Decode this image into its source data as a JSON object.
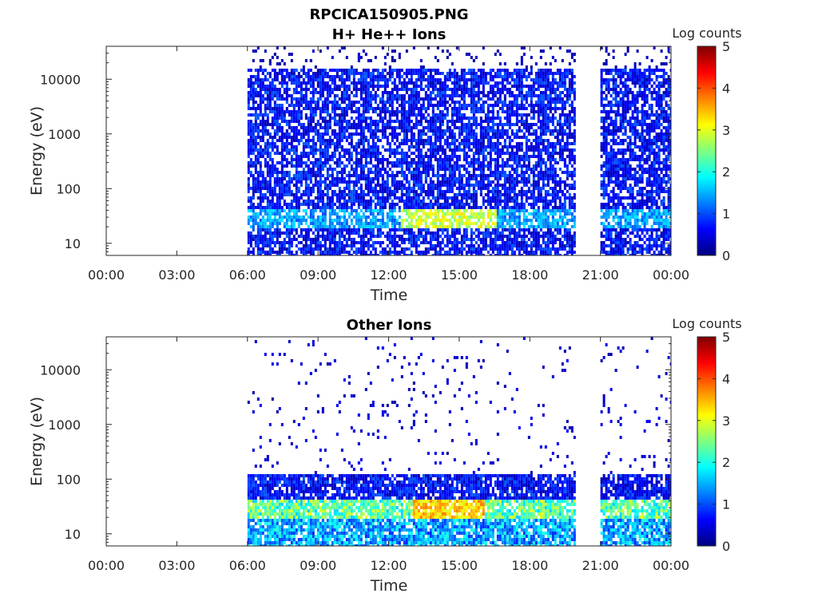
{
  "figure": {
    "title_line1": "RPCICA150905.PNG"
  },
  "colors": {
    "colormap": [
      "#00007f",
      "#0000ff",
      "#007fff",
      "#00ffff",
      "#7fff7f",
      "#ffff00",
      "#ff7f00",
      "#ff0000",
      "#7f0000"
    ],
    "axis": "#262626"
  },
  "chart_data": [
    {
      "type": "heatmap",
      "title": "H+ He++ Ions",
      "xlabel": "Time",
      "ylabel": "Energy (eV)",
      "y_scale": "log",
      "ylim": [
        6,
        40000
      ],
      "xlim": [
        "00:00",
        "24:00"
      ],
      "x_ticks": [
        "00:00",
        "03:00",
        "06:00",
        "09:00",
        "12:00",
        "15:00",
        "18:00",
        "21:00",
        "00:00"
      ],
      "y_ticks": [
        "10",
        "100",
        "1000",
        "10000"
      ],
      "colorbar": {
        "label": "Log counts",
        "range": [
          0,
          5
        ],
        "ticks": [
          "0",
          "1",
          "2",
          "3",
          "4",
          "5"
        ]
      },
      "data_intervals": [
        {
          "start_hour": 6.0,
          "end_hour": 19.9
        },
        {
          "start_hour": 21.0,
          "end_hour": 24.0
        }
      ],
      "energy_upper_cutoff_eV": 15000,
      "peak_band": {
        "energy_eV": [
          20,
          45
        ],
        "log_counts_max": 3.3,
        "hours": [
          12.5,
          16.5
        ]
      },
      "notes_visible": "dense low-count (0–1) coverage from 10 eV to 15000 eV; enhanced 1.5–3 band near 20–45 eV"
    },
    {
      "type": "heatmap",
      "title": "Other Ions",
      "xlabel": "Time",
      "ylabel": "Energy (eV)",
      "y_scale": "log",
      "ylim": [
        6,
        40000
      ],
      "xlim": [
        "00:00",
        "24:00"
      ],
      "x_ticks": [
        "00:00",
        "03:00",
        "06:00",
        "09:00",
        "12:00",
        "15:00",
        "18:00",
        "21:00",
        "00:00"
      ],
      "y_ticks": [
        "10",
        "100",
        "1000",
        "10000"
      ],
      "colorbar": {
        "label": "Log counts",
        "range": [
          0,
          5
        ],
        "ticks": [
          "0",
          "1",
          "2",
          "3",
          "4",
          "5"
        ]
      },
      "data_intervals": [
        {
          "start_hour": 6.0,
          "end_hour": 19.9
        },
        {
          "start_hour": 21.0,
          "end_hour": 24.0
        }
      ],
      "energy_upper_cutoff_eV": 120,
      "peak_band": {
        "energy_eV": [
          18,
          45
        ],
        "log_counts_max": 3.8,
        "hours": [
          13.0,
          16.0
        ]
      },
      "notes_visible": "sparse low-count dots up to ~30000 eV; dense band 10–120 eV with 2–3.8 peak near 20–45 eV"
    }
  ]
}
